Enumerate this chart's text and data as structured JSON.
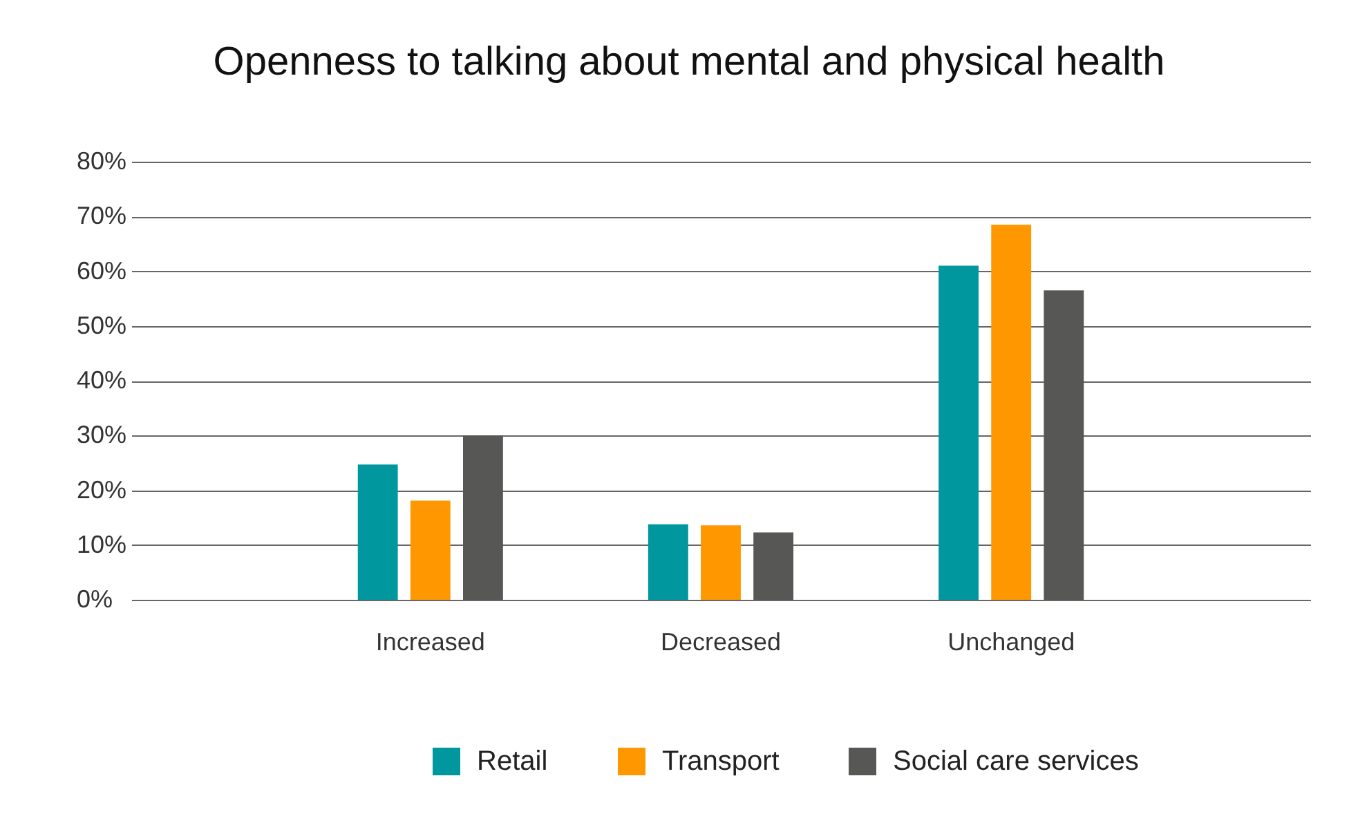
{
  "chart_data": {
    "type": "bar",
    "title": "Openness to talking about mental and physical health",
    "categories": [
      "Increased",
      "Decreased",
      "Unchanged"
    ],
    "series": [
      {
        "name": "Retail",
        "color": "#00979f",
        "values": [
          24.7,
          13.8,
          61
        ]
      },
      {
        "name": "Transport",
        "color": "#ff9800",
        "values": [
          18.1,
          13.6,
          68.5
        ]
      },
      {
        "name": "Social care services",
        "color": "#575756",
        "values": [
          30,
          12.3,
          56.5
        ]
      }
    ],
    "ylim": [
      0,
      80
    ],
    "yticks": [
      {
        "value": 0,
        "label": "0%"
      },
      {
        "value": 10,
        "label": "10%"
      },
      {
        "value": 20,
        "label": "20%"
      },
      {
        "value": 30,
        "label": "30%"
      },
      {
        "value": 40,
        "label": "40%"
      },
      {
        "value": 50,
        "label": "50%"
      },
      {
        "value": 60,
        "label": "60%"
      },
      {
        "value": 70,
        "label": "70%"
      },
      {
        "value": 80,
        "label": "80%"
      }
    ],
    "grid": "y",
    "legend": "bottom"
  }
}
